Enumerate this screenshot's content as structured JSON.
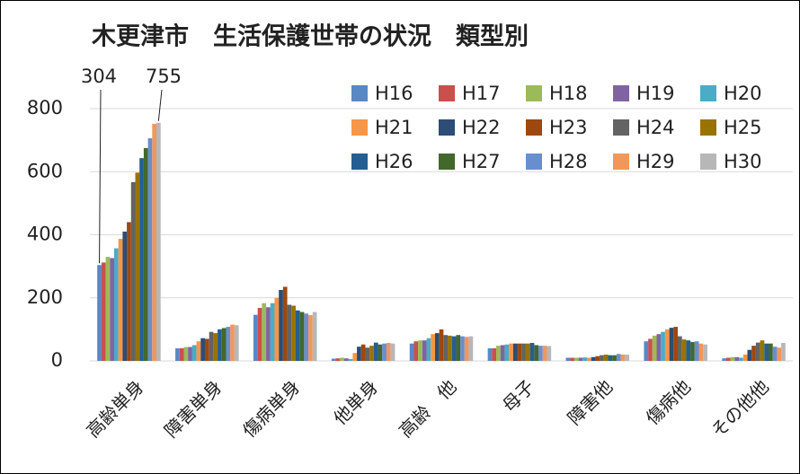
{
  "chart_data": {
    "type": "bar",
    "title": "木更津市　生活保護世帯の状況　類型別",
    "annotations": [
      "304",
      "755"
    ],
    "categories": [
      "高齢単身",
      "障害単身",
      "傷病単身",
      "他単身",
      "高齢　他",
      "母子",
      "障害他",
      "傷病他",
      "その他他"
    ],
    "series": [
      {
        "name": "H16",
        "color": "#5a87c5",
        "values": [
          304,
          40,
          146,
          7,
          55,
          40,
          10,
          62,
          8
        ]
      },
      {
        "name": "H17",
        "color": "#c9504d",
        "values": [
          312,
          40,
          168,
          8,
          62,
          40,
          10,
          70,
          10
        ]
      },
      {
        "name": "H18",
        "color": "#9bbb59",
        "values": [
          330,
          44,
          183,
          10,
          65,
          48,
          10,
          80,
          12
        ]
      },
      {
        "name": "H19",
        "color": "#8064a2",
        "values": [
          326,
          44,
          170,
          8,
          65,
          50,
          10,
          85,
          12
        ]
      },
      {
        "name": "H20",
        "color": "#4bacc6",
        "values": [
          357,
          50,
          183,
          6,
          72,
          52,
          11,
          92,
          10
        ]
      },
      {
        "name": "H21",
        "color": "#f79646",
        "values": [
          387,
          62,
          200,
          25,
          85,
          55,
          10,
          100,
          20
        ]
      },
      {
        "name": "H22",
        "color": "#2c4d75",
        "values": [
          410,
          72,
          225,
          45,
          88,
          55,
          12,
          105,
          35
        ]
      },
      {
        "name": "H23",
        "color": "#9e480e",
        "values": [
          440,
          70,
          235,
          52,
          100,
          55,
          15,
          108,
          48
        ]
      },
      {
        "name": "H24",
        "color": "#636363",
        "values": [
          567,
          92,
          178,
          42,
          82,
          55,
          18,
          78,
          58
        ]
      },
      {
        "name": "H25",
        "color": "#997300",
        "values": [
          597,
          88,
          175,
          48,
          80,
          55,
          20,
          68,
          65
        ]
      },
      {
        "name": "H26",
        "color": "#255e91",
        "values": [
          643,
          100,
          160,
          58,
          78,
          57,
          18,
          65,
          55
        ]
      },
      {
        "name": "H27",
        "color": "#43682b",
        "values": [
          675,
          104,
          155,
          52,
          82,
          50,
          18,
          60,
          55
        ]
      },
      {
        "name": "H28",
        "color": "#698ed0",
        "values": [
          706,
          108,
          150,
          55,
          78,
          48,
          22,
          62,
          45
        ]
      },
      {
        "name": "H29",
        "color": "#f1975a",
        "values": [
          752,
          115,
          145,
          57,
          76,
          48,
          20,
          55,
          42
        ]
      },
      {
        "name": "H30",
        "color": "#b7b7b7",
        "values": [
          755,
          113,
          155,
          55,
          78,
          47,
          20,
          52,
          57
        ]
      }
    ],
    "ylim": [
      0,
      800
    ],
    "yticks": [
      0,
      200,
      400,
      600,
      800
    ],
    "grid": true
  }
}
